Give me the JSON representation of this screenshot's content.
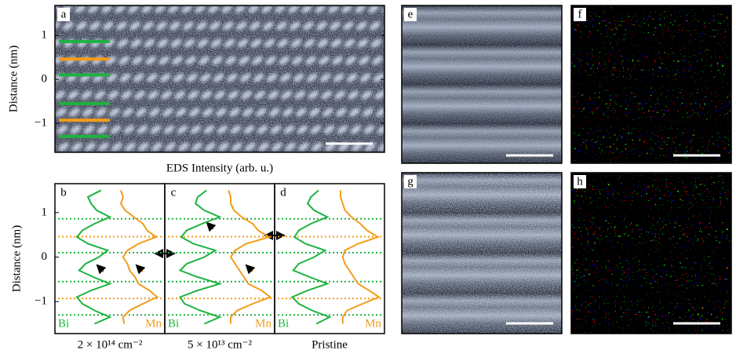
{
  "shared_xlabel": "EDS Intensity (arb. u.)",
  "chart_data": [
    {
      "type": "image",
      "panel": "a",
      "ylabel": "Distance (nm)",
      "ylim": [
        -1.66,
        1.68
      ],
      "yticks": [
        1,
        0,
        {
          "value": -1,
          "label": "−1"
        }
      ],
      "layers": [
        {
          "color": "#1db33f",
          "values": [
            0.86,
            0.1,
            -0.55,
            -1.3
          ]
        },
        {
          "color": "#f39c1a",
          "values": [
            0.46,
            -0.93
          ]
        }
      ]
    },
    {
      "type": "line",
      "panel": "b",
      "ylabel": "Distance (nm)",
      "xlabel": "2 × 10¹⁴ cm⁻²",
      "ylim": [
        -1.72,
        1.65
      ],
      "yticks": [
        1,
        0,
        {
          "value": -1,
          "label": "−1"
        }
      ],
      "y": [
        1.5,
        1.35,
        1.2,
        1.05,
        0.9,
        0.75,
        0.6,
        0.45,
        0.3,
        0.15,
        0,
        -0.15,
        -0.3,
        -0.45,
        -0.6,
        -0.75,
        -0.9,
        -1.05,
        -1.2,
        -1.35,
        -1.5
      ],
      "series": [
        {
          "name": "Bi",
          "color": "#1db33f",
          "values": [
            0.42,
            0.3,
            0.33,
            0.38,
            0.5,
            0.36,
            0.25,
            0.2,
            0.3,
            0.48,
            0.4,
            0.28,
            0.22,
            0.35,
            0.5,
            0.33,
            0.2,
            0.25,
            0.36,
            0.5,
            0.36
          ]
        },
        {
          "name": "Mn",
          "color": "#f39c1a",
          "values": [
            0.6,
            0.62,
            0.6,
            0.64,
            0.72,
            0.8,
            0.84,
            0.92,
            0.76,
            0.66,
            0.62,
            0.66,
            0.68,
            0.73,
            0.76,
            0.86,
            0.93,
            0.8,
            0.68,
            0.62,
            0.63
          ]
        }
      ],
      "layers": [
        {
          "color": "#1db33f",
          "values": [
            0.86,
            0.1,
            -0.55,
            -1.3
          ]
        },
        {
          "color": "#f39c1a",
          "values": [
            0.46,
            -0.93
          ]
        }
      ]
    },
    {
      "type": "line",
      "panel": "c",
      "xlabel": "5 × 10¹³ cm⁻²",
      "ylim": [
        -1.72,
        1.65
      ],
      "y": [
        1.5,
        1.35,
        1.2,
        1.05,
        0.9,
        0.75,
        0.6,
        0.45,
        0.3,
        0.15,
        0,
        -0.15,
        -0.3,
        -0.45,
        -0.6,
        -0.75,
        -0.9,
        -1.05,
        -1.2,
        -1.35,
        -1.5
      ],
      "series": [
        {
          "name": "Bi",
          "color": "#1db33f",
          "values": [
            0.38,
            0.3,
            0.28,
            0.36,
            0.5,
            0.34,
            0.2,
            0.15,
            0.26,
            0.46,
            0.36,
            0.2,
            0.14,
            0.3,
            0.5,
            0.3,
            0.14,
            0.18,
            0.32,
            0.5,
            0.36
          ]
        },
        {
          "name": "Mn",
          "color": "#f39c1a",
          "values": [
            0.58,
            0.6,
            0.6,
            0.63,
            0.7,
            0.8,
            0.85,
            0.95,
            0.74,
            0.64,
            0.6,
            0.64,
            0.68,
            0.72,
            0.76,
            0.88,
            0.96,
            0.8,
            0.66,
            0.6,
            0.6
          ]
        }
      ],
      "layers": [
        {
          "color": "#1db33f",
          "values": [
            0.86,
            0.1,
            -0.55,
            -1.3
          ]
        },
        {
          "color": "#f39c1a",
          "values": [
            0.46,
            -0.93
          ]
        }
      ]
    },
    {
      "type": "line",
      "panel": "d",
      "xlabel": "Pristine",
      "ylim": [
        -1.72,
        1.65
      ],
      "y": [
        1.5,
        1.35,
        1.2,
        1.05,
        0.9,
        0.75,
        0.6,
        0.45,
        0.3,
        0.15,
        0,
        -0.15,
        -0.3,
        -0.45,
        -0.6,
        -0.75,
        -0.9,
        -1.05,
        -1.2,
        -1.35,
        -1.5
      ],
      "series": [
        {
          "name": "Bi",
          "color": "#1db33f",
          "values": [
            0.4,
            0.33,
            0.3,
            0.36,
            0.48,
            0.33,
            0.22,
            0.18,
            0.28,
            0.46,
            0.36,
            0.22,
            0.17,
            0.32,
            0.48,
            0.3,
            0.16,
            0.22,
            0.34,
            0.5,
            0.38
          ]
        },
        {
          "name": "Mn",
          "color": "#f39c1a",
          "values": [
            0.6,
            0.6,
            0.62,
            0.64,
            0.7,
            0.78,
            0.84,
            0.94,
            0.76,
            0.64,
            0.62,
            0.64,
            0.68,
            0.72,
            0.76,
            0.86,
            0.95,
            0.8,
            0.66,
            0.62,
            0.62
          ]
        }
      ],
      "layers": [
        {
          "color": "#1db33f",
          "values": [
            0.86,
            0.1,
            -0.55,
            -1.3
          ]
        },
        {
          "color": "#f39c1a",
          "values": [
            0.46,
            -0.93
          ]
        }
      ]
    },
    {
      "type": "image",
      "panel": "e"
    },
    {
      "type": "image",
      "panel": "f"
    },
    {
      "type": "image",
      "panel": "g"
    },
    {
      "type": "image",
      "panel": "h"
    }
  ]
}
